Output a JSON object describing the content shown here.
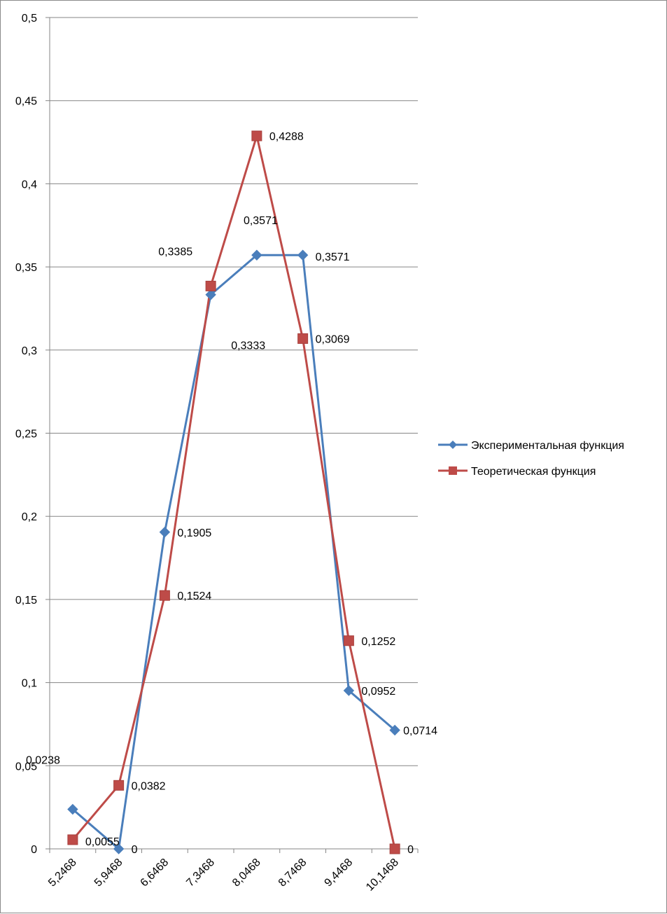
{
  "chart_data": {
    "type": "line",
    "title": "",
    "xlabel": "",
    "ylabel": "",
    "categories": [
      "5,2468",
      "5,9468",
      "6,6468",
      "7,3468",
      "8,0468",
      "8,7468",
      "9,4468",
      "10,1468"
    ],
    "ylim": [
      0,
      0.5
    ],
    "yticks": [
      0,
      0.05,
      0.1,
      0.15,
      0.2,
      0.25,
      0.3,
      0.35,
      0.4,
      0.45,
      0.5
    ],
    "ytick_labels": [
      "0",
      "0,05",
      "0,1",
      "0,15",
      "0,2",
      "0,25",
      "0,3",
      "0,35",
      "0,4",
      "0,45",
      "0,5"
    ],
    "grid": true,
    "legend_position": "right",
    "series": [
      {
        "name": "Экспериментальная функция",
        "color": "#4a7ebb",
        "marker": "diamond",
        "values": [
          0.0238,
          0,
          0.1905,
          0.3333,
          0.3571,
          0.3571,
          0.0952,
          0.0714
        ],
        "labels": [
          "0,0238",
          "0",
          "0,1905",
          "0,3333",
          "0,3571",
          "0,3571",
          "0,0952",
          "0,0714"
        ]
      },
      {
        "name": "Теоретическая функция",
        "color": "#be4b48",
        "marker": "square",
        "values": [
          0.0055,
          0.0382,
          0.1524,
          0.3385,
          0.4288,
          0.3069,
          0.1252,
          0
        ],
        "labels": [
          "0,0055",
          "0,0382",
          "0,1524",
          "0,3385",
          "0,4288",
          "0,3069",
          "0,1252",
          "0"
        ]
      }
    ]
  }
}
